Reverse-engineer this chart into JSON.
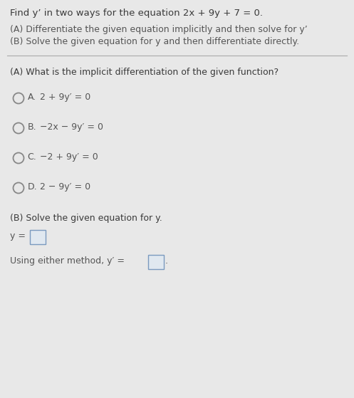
{
  "bg_color": "#e8e8e8",
  "text_color_dark": "#3a3a3a",
  "text_color_mid": "#555555",
  "text_color_light": "#777777",
  "title": "Find y’ in two ways for the equation 2x + 9y + 7 = 0.",
  "subtitle_a": "(A) Differentiate the given equation implicitly and then solve for y’",
  "subtitle_b": "(B) Solve the given equation for y and then differentiate directly.",
  "section_a_question": "(A) What is the implicit differentiation of the given function?",
  "options": [
    [
      "A.",
      " 2 + 9y′ = 0"
    ],
    [
      "B.",
      " −2x − 9y′ = 0"
    ],
    [
      "C.",
      " −2 + 9y′ = 0"
    ],
    [
      "D.",
      " 2 − 9y′ = 0"
    ]
  ],
  "section_b_label": "(B) Solve the given equation for y.",
  "y_eq_label": "y = ",
  "method_label": "Using either method, y′ = ",
  "circle_color": "#888888",
  "box_edge": "#7a9abf",
  "box_face": "#e0e8f0"
}
